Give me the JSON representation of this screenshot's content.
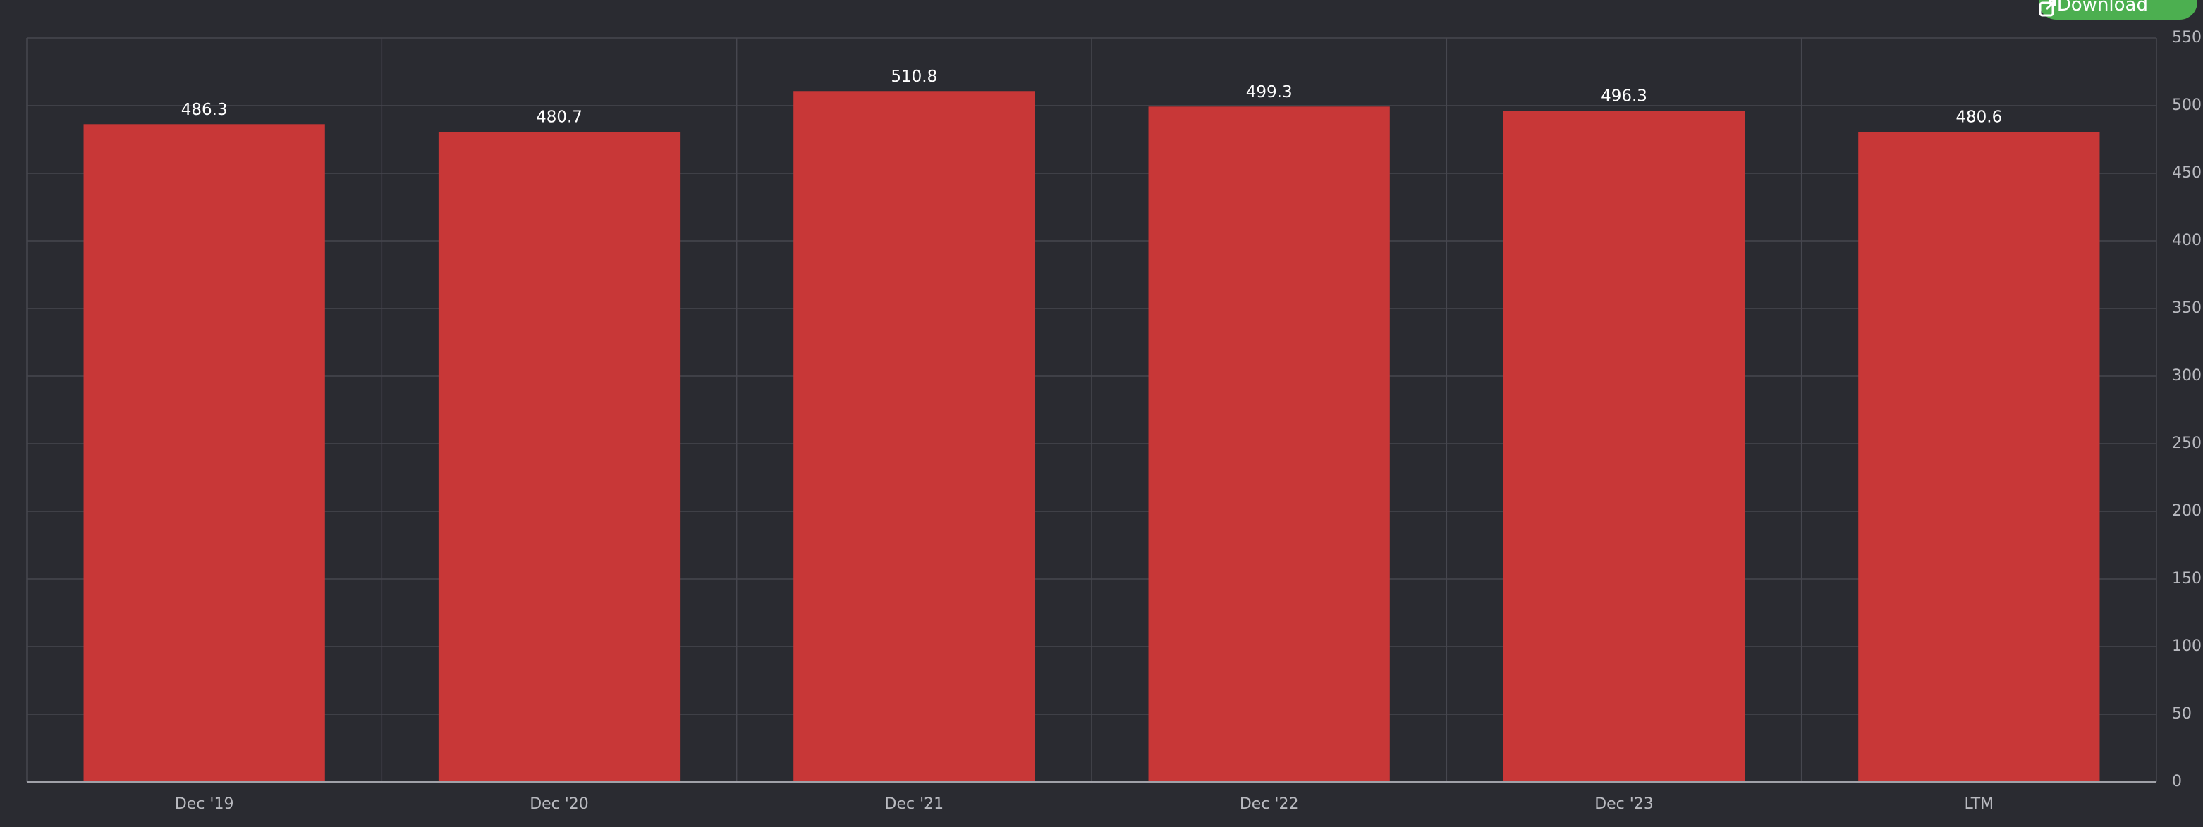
{
  "chart_data": {
    "type": "bar",
    "categories": [
      "Dec '19",
      "Dec '20",
      "Dec '21",
      "Dec '22",
      "Dec '23",
      "LTM"
    ],
    "values": [
      486.3,
      480.7,
      510.8,
      499.3,
      496.3,
      480.6
    ],
    "color": "#c83737",
    "ylim": [
      0,
      550
    ],
    "yticks": [
      0,
      50,
      100,
      150,
      200,
      250,
      300,
      350,
      400,
      450,
      500,
      550
    ],
    "grid": true
  },
  "download_button": "Download"
}
